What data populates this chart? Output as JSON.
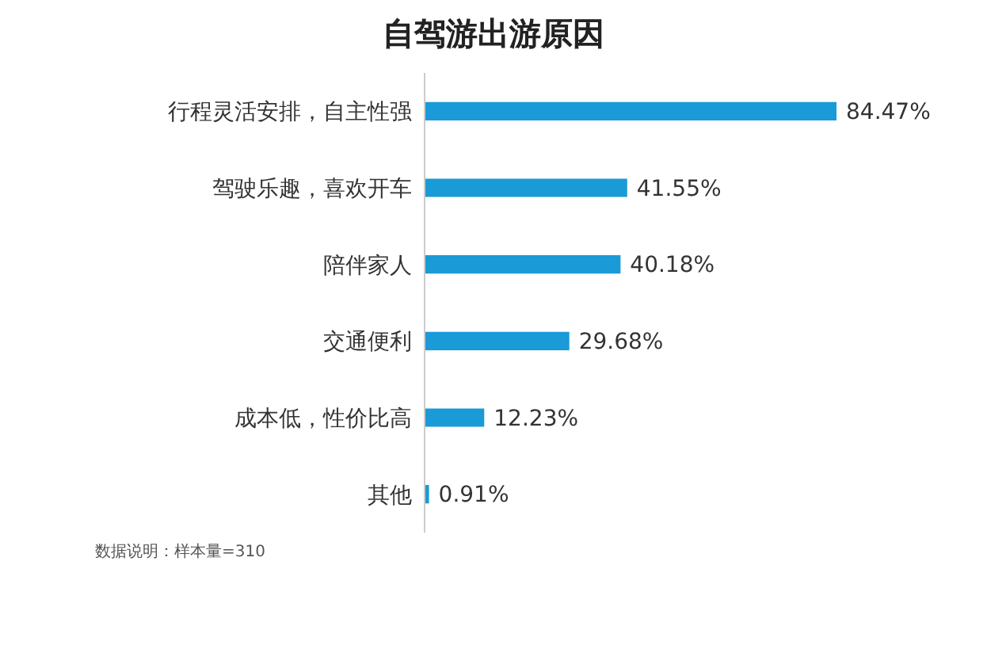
{
  "chart_data": {
    "type": "bar",
    "orientation": "horizontal",
    "title": "自驾游出游原因",
    "categories": [
      "行程灵活安排，自主性强",
      "驾驶乐趣，喜欢开车",
      "陪伴家人",
      "交通便利",
      "成本低，性价比高",
      "其他"
    ],
    "values": [
      84.47,
      41.55,
      40.18,
      29.68,
      12.23,
      0.91
    ],
    "value_labels": [
      "84.47%",
      "41.55%",
      "40.18%",
      "29.68%",
      "12.23%",
      "0.91%"
    ],
    "color": "#1a9ad6",
    "annotations": [
      "数据说明：样本量=310"
    ]
  }
}
